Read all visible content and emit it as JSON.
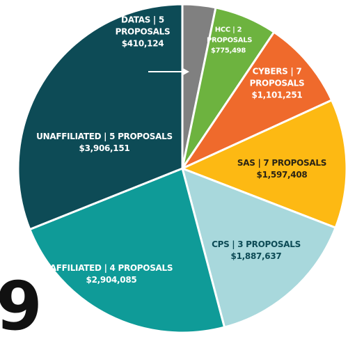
{
  "chart_data": {
    "type": "pie",
    "categories": [
      "DATAS | 5 PROPOSALS",
      "HCC | 2 PROPOSALS",
      "CYBERS | 7 PROPOSALS",
      "SAS | 7 PROPOSALS",
      "CPS | 3 PROPOSALS",
      "AFFILIATED | 4 PROPOSALS",
      "UNAFFILIATED | 5 PROPOSALS"
    ],
    "values": [
      410124,
      775498,
      1101251,
      1597408,
      1887637,
      2904085,
      3906151
    ],
    "value_labels": [
      "$410,124",
      "$775,498",
      "$1,101,251",
      "$1,597,408",
      "$1,887,637",
      "$2,904,085",
      "$3,906,151"
    ],
    "colors": [
      "#808080",
      "#6db33f",
      "#ef6a2c",
      "#fdb913",
      "#a8d8dc",
      "#0f9b98",
      "#0d4b56"
    ],
    "annotation": "9"
  }
}
